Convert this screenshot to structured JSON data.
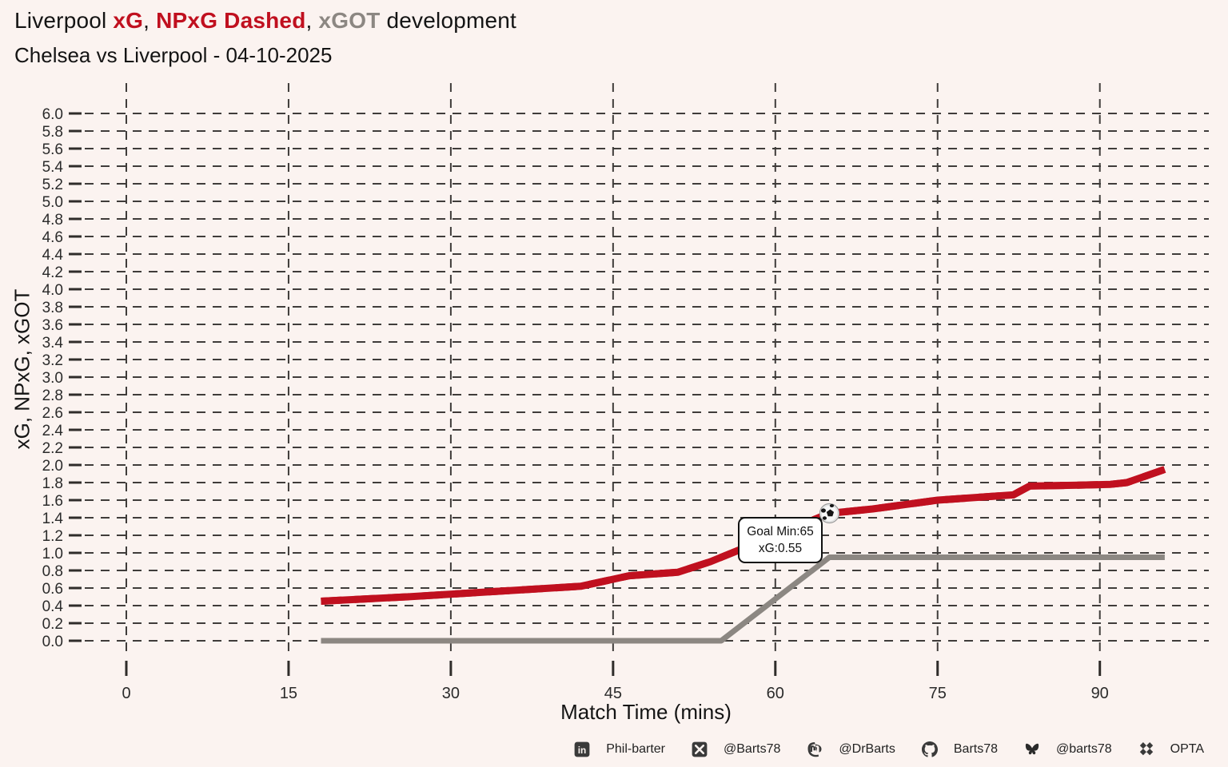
{
  "title": {
    "part1": "Liverpool ",
    "xg": "xG",
    "comma1": ", ",
    "npxg": "NPxG Dashed",
    "comma2": ", ",
    "xgot": "xGOT",
    "part2": " development"
  },
  "subtitle": "Chelsea vs Liverpool - 04-10-2025",
  "colors": {
    "background": "#FBF3F0",
    "xg_red": "#C0101F",
    "xgot_gray": "#8C8782",
    "grid": "#3F3C3A",
    "tick_text": "#2B2B2B",
    "tooltip_border": "#111111",
    "tooltip_bg": "#FFFFFF"
  },
  "chart_data": {
    "type": "line",
    "title": "Liverpool xG, NPxG Dashed, xGOT development",
    "subtitle": "Chelsea vs Liverpool - 04-10-2025",
    "xlabel": "Match Time (mins)",
    "ylabel": "xG, NPxG, xGOT",
    "xlim": [
      -5,
      100
    ],
    "ylim": [
      0,
      6
    ],
    "grid": "dashed-both-axes",
    "legend_position": "none (encoded in title colors)",
    "x_ticks": [
      0,
      15,
      30,
      45,
      60,
      75,
      90
    ],
    "y_ticks": [
      0.0,
      0.2,
      0.4,
      0.6,
      0.8,
      1.0,
      1.2,
      1.4,
      1.6,
      1.8,
      2.0,
      2.2,
      2.4,
      2.6,
      2.8,
      3.0,
      3.2,
      3.4,
      3.6,
      3.8,
      4.0,
      4.2,
      4.4,
      4.6,
      4.8,
      5.0,
      5.2,
      5.4,
      5.6,
      5.8,
      6.0
    ],
    "series": [
      {
        "name": "xGOT",
        "color": "#8C8782",
        "style": "solid",
        "width": 7,
        "points": [
          [
            18,
            0.0
          ],
          [
            55,
            0.0
          ],
          [
            65,
            0.95
          ],
          [
            96,
            0.95
          ]
        ]
      },
      {
        "name": "xG",
        "color": "#C0101F",
        "style": "solid",
        "width": 9,
        "points": [
          [
            18,
            0.45
          ],
          [
            26,
            0.5
          ],
          [
            34,
            0.56
          ],
          [
            42,
            0.62
          ],
          [
            45,
            0.7
          ],
          [
            46.5,
            0.74
          ],
          [
            51,
            0.78
          ],
          [
            54,
            0.9
          ],
          [
            57,
            1.05
          ],
          [
            65,
            1.45
          ],
          [
            69,
            1.5
          ],
          [
            75,
            1.6
          ],
          [
            82,
            1.66
          ],
          [
            83.5,
            1.76
          ],
          [
            88,
            1.77
          ],
          [
            91,
            1.78
          ],
          [
            92.5,
            1.8
          ],
          [
            96,
            1.95
          ]
        ]
      },
      {
        "name": "NPxG",
        "color": "#C0101F",
        "style": "dashed",
        "width": 9,
        "points": [
          [
            18,
            0.45
          ],
          [
            26,
            0.5
          ],
          [
            34,
            0.56
          ],
          [
            42,
            0.62
          ],
          [
            45,
            0.7
          ],
          [
            46.5,
            0.74
          ],
          [
            51,
            0.78
          ],
          [
            54,
            0.9
          ],
          [
            57,
            1.05
          ],
          [
            65,
            1.45
          ],
          [
            69,
            1.5
          ],
          [
            75,
            1.6
          ],
          [
            82,
            1.66
          ],
          [
            83.5,
            1.76
          ],
          [
            88,
            1.77
          ],
          [
            91,
            1.78
          ],
          [
            92.5,
            1.8
          ],
          [
            96,
            1.95
          ]
        ]
      }
    ],
    "annotation": {
      "marker": "soccer-ball",
      "x": 65,
      "y": 1.45,
      "lines": [
        "Goal Min:65",
        "xG:0.55"
      ]
    }
  },
  "footer": {
    "items": [
      {
        "icon": "linkedin-icon",
        "label": "Phil-barter"
      },
      {
        "icon": "x-icon",
        "label": "@Barts78"
      },
      {
        "icon": "mastodon-icon",
        "label": "@DrBarts"
      },
      {
        "icon": "github-icon",
        "label": "Barts78"
      },
      {
        "icon": "bluesky-icon",
        "label": "@barts78"
      },
      {
        "icon": "opta-icon",
        "label": "OPTA"
      }
    ]
  }
}
